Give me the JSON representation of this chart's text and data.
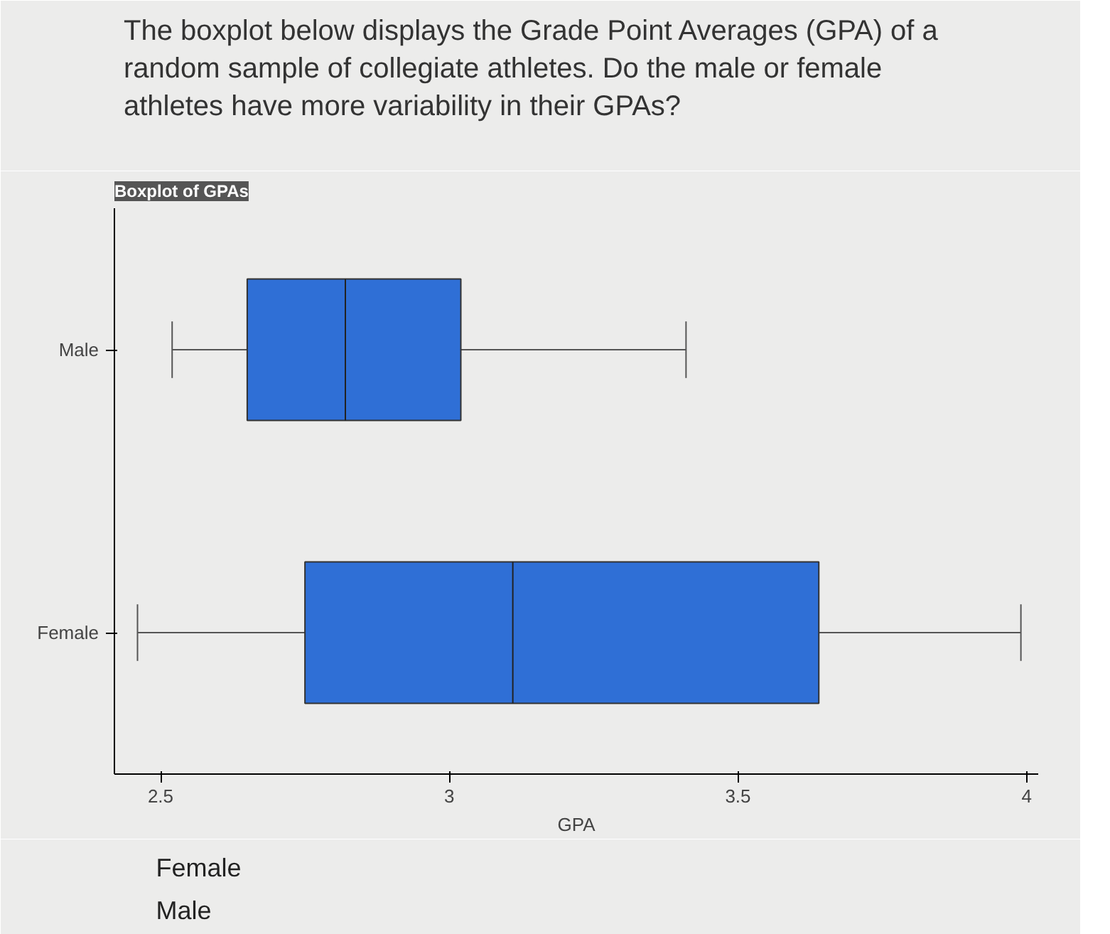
{
  "chart_data": {
    "type": "box",
    "title": "The boxplot below displays the Grade Point Averages (GPA) of a random sample of collegiate athletes.  Do the male or female athletes have more variability in their GPAs?",
    "subtitle": "Boxplot of GPAs",
    "categories": [
      "Male",
      "Female"
    ],
    "orientation": "horizontal",
    "color": "#2f6fd6",
    "boxes": [
      {
        "low": 2.52,
        "q1": 2.65,
        "median": 2.82,
        "q3": 3.02,
        "high": 3.41
      },
      {
        "low": 2.46,
        "q1": 2.75,
        "median": 3.11,
        "q3": 3.64,
        "high": 3.99
      }
    ],
    "xlabel": "GPA",
    "xlim": [
      2.42,
      4.02
    ],
    "xticks": [
      2.5,
      3,
      3.5,
      4
    ],
    "grid": false,
    "annotations": [
      "Female",
      "Male"
    ]
  }
}
